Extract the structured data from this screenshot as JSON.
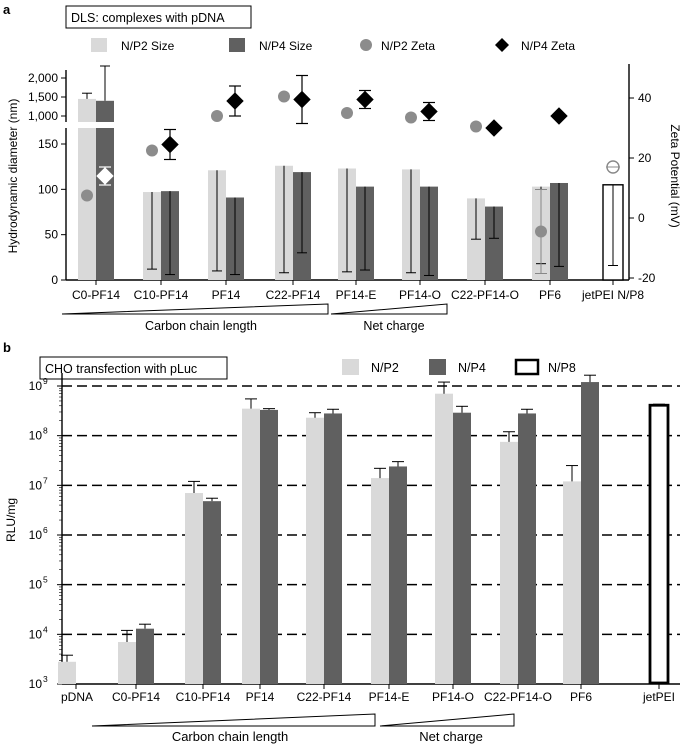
{
  "panels": {
    "a": {
      "letter": "a",
      "box_title": "DLS: complexes with pDNA"
    },
    "b": {
      "letter": "b",
      "box_title": "CHO transfection with pLuc"
    }
  },
  "chart_data": [
    {
      "panel": "a",
      "type": "bar",
      "title": "DLS: complexes with pDNA",
      "ylabel": "Hydrodynamic diameter (nm)",
      "y2label": "Zeta Potential (mV)",
      "categories": [
        "C0-PF14",
        "C10-PF14",
        "PF14",
        "C22-PF14",
        "PF14-E",
        "PF14-O",
        "C22-PF14-O",
        "PF6",
        "jetPEI N/P8"
      ],
      "y_axis_broken": true,
      "y_lower_ticks": [
        0,
        50,
        100,
        150
      ],
      "y_upper_ticks": [
        "1,000",
        "1,500",
        "2,000"
      ],
      "y2_ticks": [
        -20,
        0,
        20,
        40
      ],
      "legend": [
        "N/P2 Size",
        "N/P4 Size",
        "N/P2 Zeta",
        "N/P4 Zeta"
      ],
      "legend_position": "top",
      "colors": {
        "np2_size": "#d9d9d9",
        "np4_size": "#606060",
        "np2_zeta": "#8c8c8c",
        "np4_zeta": "#000000"
      },
      "series": [
        {
          "name": "N/P2 Size",
          "values": [
            1450,
            97,
            121,
            126,
            123,
            122,
            90,
            103,
            null
          ],
          "error": [
            1600,
            12,
            10,
            8,
            9,
            8,
            45,
            18,
            null
          ]
        },
        {
          "name": "N/P4 Size",
          "values": [
            1400,
            98,
            91,
            119,
            103,
            103,
            81,
            107,
            null
          ],
          "error": [
            400,
            6,
            6,
            30,
            11,
            5,
            46,
            15,
            null
          ]
        },
        {
          "name": "N/P2 Zeta",
          "values": [
            7.5,
            22.5,
            34,
            40.5,
            35,
            33.5,
            30.5,
            -4.5,
            null
          ],
          "error": [
            null,
            null,
            null,
            null,
            null,
            null,
            null,
            14,
            null
          ]
        },
        {
          "name": "N/P4 Zeta",
          "values": [
            14,
            24.5,
            39,
            39.5,
            39.5,
            35.5,
            30,
            34,
            null
          ],
          "error": [
            3,
            5,
            5,
            8,
            3,
            3,
            null,
            null,
            null
          ]
        },
        {
          "name": "jetPEI N/P8 Size",
          "values": [
            null,
            null,
            null,
            null,
            null,
            null,
            null,
            null,
            105
          ],
          "error": [
            null,
            null,
            null,
            null,
            null,
            null,
            null,
            null,
            16
          ]
        },
        {
          "name": "jetPEI N/P8 Zeta",
          "values": [
            null,
            null,
            null,
            null,
            null,
            null,
            null,
            null,
            17
          ],
          "error": [
            null,
            null,
            null,
            null,
            null,
            null,
            null,
            null,
            null
          ]
        }
      ],
      "annotations": [
        "Carbon chain length",
        "Net charge"
      ]
    },
    {
      "panel": "b",
      "type": "bar",
      "title": "CHO transfection with pLuc",
      "ylabel": "RLU/mg",
      "yscale": "log",
      "ylim": [
        1000,
        10000000000
      ],
      "y_ticks_exponents": [
        3,
        4,
        5,
        6,
        7,
        8,
        9
      ],
      "categories": [
        "pDNA",
        "C0-PF14",
        "C10-PF14",
        "PF14",
        "C22-PF14",
        "PF14-E",
        "PF14-O",
        "C22-PF14-O",
        "PF6",
        "jetPEI"
      ],
      "legend": [
        "N/P2",
        "N/P4",
        "N/P8"
      ],
      "legend_position": "top-right",
      "grid": "dashed horizontal lines at 10^4–10^9",
      "colors": {
        "np2": "#d9d9d9",
        "np4": "#606060",
        "np8": "#ffffff"
      },
      "series": [
        {
          "name": "N/P2",
          "values": [
            2800,
            7000,
            7000000,
            350000000,
            230000000,
            14000000,
            700000000,
            75000000,
            12000000,
            null
          ],
          "error": [
            3800,
            12000,
            12000000,
            550000000,
            290000000,
            22000000,
            1200000000,
            120000000,
            25000000,
            null
          ]
        },
        {
          "name": "N/P4",
          "values": [
            null,
            13000,
            4800000,
            330000000,
            280000000,
            24000000,
            290000000,
            280000000,
            1200000000,
            null
          ],
          "error": [
            null,
            16000,
            5500000,
            350000000,
            340000000,
            30000000,
            390000000,
            340000000,
            1650000000,
            null
          ]
        },
        {
          "name": "N/P8",
          "values": [
            null,
            null,
            null,
            null,
            null,
            null,
            null,
            null,
            null,
            410000000
          ],
          "error": [
            null,
            null,
            null,
            null,
            null,
            null,
            null,
            null,
            null,
            430000000
          ]
        }
      ],
      "annotations": [
        "Carbon chain length",
        "Net charge"
      ]
    }
  ]
}
